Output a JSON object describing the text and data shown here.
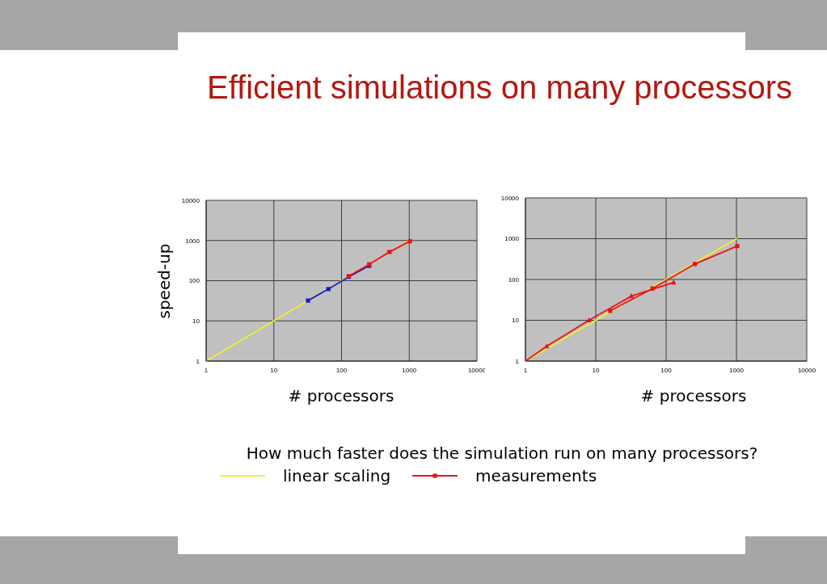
{
  "chart_data": [
    {
      "type": "line",
      "title": "Efficient simulations on many processors",
      "xlabel": "# processors",
      "ylabel": "speed-up",
      "annotations": [
        "How much faster does the simulation run on many processors?"
      ],
      "log": "xy",
      "grid": true,
      "legend": "bottom",
      "xlim": [
        1,
        10000
      ],
      "ylim": [
        1,
        10000
      ],
      "xticks": [
        1,
        10,
        100,
        1000,
        10000
      ],
      "yticks": [
        1,
        10,
        100,
        1000,
        10000
      ],
      "series": [
        {
          "name": "linear scaling",
          "color": "#f0f02e",
          "x": [
            1,
            1000
          ],
          "values": [
            1,
            1000
          ],
          "marker": "none"
        },
        {
          "color": "#1a1ad0",
          "x": [
            32,
            64,
            128,
            256
          ],
          "values": [
            32,
            62,
            125,
            235
          ],
          "marker": "square"
        },
        {
          "name": "measurements",
          "color": "#e8121a",
          "x": [
            128,
            256,
            512,
            1024
          ],
          "values": [
            130,
            255,
            520,
            960
          ],
          "marker": "square"
        }
      ]
    },
    {
      "type": "line",
      "xlabel": "# processors",
      "log": "xy",
      "grid": true,
      "xlim": [
        1,
        10000
      ],
      "ylim": [
        1,
        10000
      ],
      "xticks": [
        1,
        10,
        100,
        1000,
        10000
      ],
      "yticks": [
        1,
        10,
        100,
        1000,
        10000
      ],
      "series": [
        {
          "color": "#f0f02e",
          "x": [
            1,
            1000
          ],
          "values": [
            1,
            1000
          ],
          "marker": "none"
        },
        {
          "color": "#e8121a",
          "x": [
            1,
            2,
            8,
            32,
            128
          ],
          "values": [
            1,
            2.3,
            10,
            39,
            85
          ],
          "marker": "triangle"
        },
        {
          "color": "#e8121a",
          "x": [
            16,
            64,
            256,
            1024
          ],
          "values": [
            17,
            60,
            240,
            660
          ],
          "marker": "square"
        }
      ]
    }
  ]
}
